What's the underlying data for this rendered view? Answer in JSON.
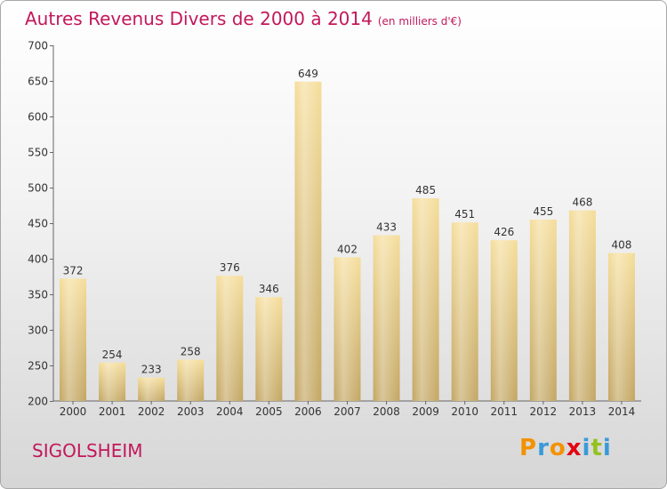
{
  "title": {
    "main": "Autres Revenus Divers de 2000 à 2014",
    "sub": "(en milliers d'€)"
  },
  "location": "SIGOLSHEIM",
  "logo": {
    "text": "Proxiti",
    "letters": [
      {
        "ch": "P",
        "color": "#f39200"
      },
      {
        "ch": "r",
        "color": "#3a9ad9"
      },
      {
        "ch": "o",
        "color": "#f39200"
      },
      {
        "ch": "x",
        "color": "#e30613"
      },
      {
        "ch": "i",
        "color": "#3a9ad9"
      },
      {
        "ch": "t",
        "color": "#95c11f"
      },
      {
        "ch": "i",
        "color": "#3a9ad9"
      }
    ]
  },
  "colors": {
    "title": "#c2185b",
    "bar_light": "#f5dd9a",
    "bar_dark": "#c3a662"
  },
  "chart_data": {
    "type": "bar",
    "categories": [
      "2000",
      "2001",
      "2002",
      "2003",
      "2004",
      "2005",
      "2006",
      "2007",
      "2008",
      "2009",
      "2010",
      "2011",
      "2012",
      "2013",
      "2014"
    ],
    "values": [
      372,
      254,
      233,
      258,
      376,
      346,
      649,
      402,
      433,
      485,
      451,
      426,
      455,
      468,
      408
    ],
    "ylim": [
      200,
      700
    ],
    "yticks": [
      200,
      250,
      300,
      350,
      400,
      450,
      500,
      550,
      600,
      650,
      700
    ],
    "grid": false,
    "data_labels": true
  }
}
